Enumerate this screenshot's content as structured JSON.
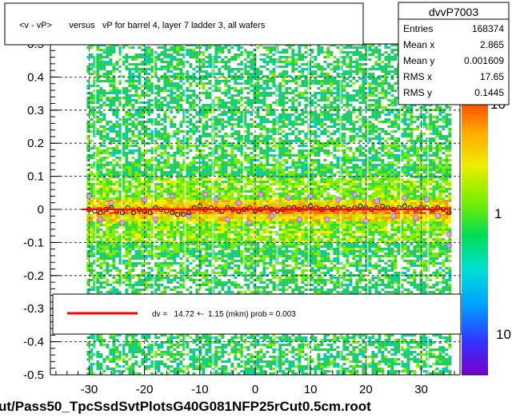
{
  "title": "<v - vP>       versus   vP for barrel 4, layer 7 ladder 3, all wafers",
  "footer": "ut/Pass50_TpcSsdSvtPlotsG40G081NFP25rCut0.5cm.root",
  "stats": {
    "name": "dvvP7003",
    "rows": [
      {
        "label": "Entries",
        "value": "168374"
      },
      {
        "label": "Mean x",
        "value": "2.865"
      },
      {
        "label": "Mean y",
        "value": "0.001609"
      },
      {
        "label": "RMS x",
        "value": "17.65"
      },
      {
        "label": "RMS y",
        "value": "0.1445"
      }
    ]
  },
  "legend": {
    "text": "dv =   14.72 +-  1.15 (mkm) prob = 0.003",
    "line_color": "#ff0000"
  },
  "colorbar": {
    "tick_labels": [
      "10",
      "1",
      "10"
    ]
  },
  "chart_data": {
    "type": "heatmap",
    "title": "<v - vP>       versus   vP for barrel 4, layer 7 ladder 3, all wafers",
    "xlabel": "",
    "ylabel": "",
    "xlim": [
      -37,
      37
    ],
    "ylim": [
      -0.5,
      0.5
    ],
    "x_ticks": [
      -30,
      -20,
      -10,
      0,
      10,
      20,
      30
    ],
    "x_tick_labels": [
      "-30",
      "-20",
      "-10",
      "0",
      "10",
      "20",
      "30"
    ],
    "y_ticks": [
      -0.5,
      -0.4,
      -0.3,
      -0.2,
      -0.1,
      0,
      0.1,
      0.2,
      0.3,
      0.4
    ],
    "y_tick_labels": [
      "-0.5",
      "-0.4",
      "-0.3",
      "-0.2",
      "-0.1",
      "0",
      "0.1",
      "0.2",
      "0.3",
      "0.4"
    ],
    "top_partial_label": "0.5",
    "grid": true,
    "data_x_range": [
      -30,
      35
    ],
    "profile_points": [
      [
        -30,
        0.0
      ],
      [
        -29,
        -0.005
      ],
      [
        -28,
        -0.01
      ],
      [
        -27,
        0.0
      ],
      [
        -26,
        0.005
      ],
      [
        -25,
        -0.005
      ],
      [
        -24,
        -0.01
      ],
      [
        -23,
        0.005
      ],
      [
        -22,
        -0.01
      ],
      [
        -21,
        0.0
      ],
      [
        -20,
        -0.005
      ],
      [
        -19,
        -0.01
      ],
      [
        -18,
        0.005
      ],
      [
        -17,
        0.0
      ],
      [
        -16,
        -0.005
      ],
      [
        -15,
        -0.01
      ],
      [
        -14,
        -0.015
      ],
      [
        -13,
        -0.015
      ],
      [
        -12,
        -0.01
      ],
      [
        -11,
        0.005
      ],
      [
        -10,
        0.01
      ],
      [
        -9,
        0.0
      ],
      [
        -8,
        0.005
      ],
      [
        -7,
        0.0
      ],
      [
        -6,
        -0.005
      ],
      [
        -5,
        0.005
      ],
      [
        -4,
        0.0
      ],
      [
        -3,
        -0.005
      ],
      [
        -2,
        0.0
      ],
      [
        -1,
        0.005
      ],
      [
        0,
        -0.005
      ],
      [
        1,
        0.0
      ],
      [
        2,
        0.005
      ],
      [
        3,
        0.0
      ],
      [
        4,
        -0.005
      ],
      [
        5,
        0.0
      ],
      [
        6,
        0.005
      ],
      [
        7,
        0.005
      ],
      [
        8,
        0.0
      ],
      [
        9,
        0.005
      ],
      [
        10,
        0.01
      ],
      [
        11,
        0.005
      ],
      [
        12,
        0.0
      ],
      [
        13,
        0.005
      ],
      [
        14,
        0.0
      ],
      [
        15,
        0.005
      ],
      [
        16,
        0.005
      ],
      [
        17,
        0.0
      ],
      [
        18,
        0.005
      ],
      [
        19,
        0.01
      ],
      [
        20,
        0.005
      ],
      [
        21,
        0.0
      ],
      [
        22,
        0.005
      ],
      [
        23,
        0.01
      ],
      [
        24,
        0.005
      ],
      [
        25,
        0.0
      ],
      [
        26,
        0.005
      ],
      [
        27,
        0.01
      ],
      [
        28,
        0.005
      ],
      [
        29,
        0.0
      ],
      [
        30,
        0.005
      ],
      [
        31,
        0.005
      ],
      [
        32,
        0.0
      ],
      [
        33,
        0.005
      ],
      [
        34,
        0.0
      ],
      [
        35,
        -0.01
      ]
    ],
    "outlier_points": [
      [
        -30,
        0.04
      ],
      [
        -28,
        -0.03
      ],
      [
        -26,
        0.02
      ],
      [
        -24,
        -0.04
      ],
      [
        -20,
        0.03
      ],
      [
        -18,
        -0.03
      ],
      [
        -15,
        0.04
      ],
      [
        -12,
        -0.02
      ],
      [
        -9,
        0.045
      ],
      [
        -7,
        0.03
      ],
      [
        -5,
        -0.03
      ],
      [
        -3,
        0.02
      ],
      [
        -1,
        -0.04
      ],
      [
        1,
        0.045
      ],
      [
        3,
        -0.02
      ],
      [
        6,
        0.035
      ],
      [
        8,
        -0.03
      ],
      [
        10,
        0.04
      ],
      [
        13,
        -0.03
      ],
      [
        15,
        0.03
      ],
      [
        18,
        0.045
      ],
      [
        20,
        -0.035
      ],
      [
        22,
        0.025
      ],
      [
        25,
        -0.02
      ],
      [
        27,
        0.035
      ],
      [
        29,
        -0.025
      ],
      [
        31,
        0.03
      ],
      [
        33,
        -0.02
      ],
      [
        35,
        -0.075
      ],
      [
        35,
        -0.11
      ]
    ],
    "fit_value_mkm": 14.72,
    "fit_error_mkm": 1.15,
    "fit_prob": 0.003
  }
}
